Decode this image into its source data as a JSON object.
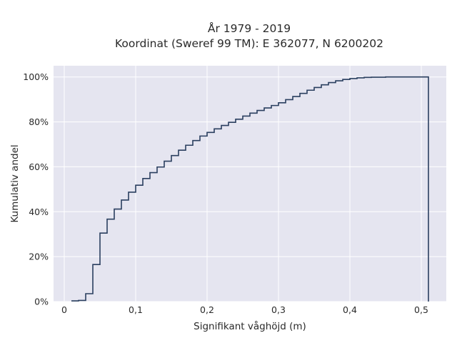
{
  "chart_data": {
    "type": "line",
    "step": true,
    "title_lines": [
      "År 1979 - 2019",
      "Koordinat (Sweref 99 TM): E 362077, N 6200202"
    ],
    "xlabel": "Signifikant våghöjd (m)",
    "ylabel": "Kumulativ andel",
    "xlim": [
      -0.015,
      0.535
    ],
    "ylim": [
      0,
      1.05
    ],
    "x_ticks": [
      0,
      0.1,
      0.2,
      0.3,
      0.4,
      0.5
    ],
    "x_tick_labels": [
      "0",
      "0,1",
      "0,2",
      "0,3",
      "0,4",
      "0,5"
    ],
    "y_ticks": [
      0,
      0.2,
      0.4,
      0.6,
      0.8,
      1.0
    ],
    "y_tick_labels": [
      "0%",
      "20%",
      "40%",
      "60%",
      "80%",
      "100%"
    ],
    "grid": true,
    "x": [
      0.01,
      0.02,
      0.03,
      0.04,
      0.05,
      0.06,
      0.07,
      0.08,
      0.09,
      0.1,
      0.11,
      0.12,
      0.13,
      0.14,
      0.15,
      0.16,
      0.17,
      0.18,
      0.19,
      0.2,
      0.21,
      0.22,
      0.23,
      0.24,
      0.25,
      0.26,
      0.27,
      0.28,
      0.29,
      0.3,
      0.31,
      0.32,
      0.33,
      0.34,
      0.35,
      0.36,
      0.37,
      0.38,
      0.39,
      0.4,
      0.41,
      0.42,
      0.43,
      0.44,
      0.45,
      0.46,
      0.47,
      0.48,
      0.49,
      0.5,
      0.51
    ],
    "y": [
      0.003,
      0.005,
      0.035,
      0.165,
      0.305,
      0.367,
      0.412,
      0.452,
      0.487,
      0.518,
      0.548,
      0.574,
      0.599,
      0.625,
      0.65,
      0.674,
      0.696,
      0.717,
      0.737,
      0.753,
      0.769,
      0.784,
      0.798,
      0.812,
      0.826,
      0.839,
      0.851,
      0.862,
      0.873,
      0.885,
      0.899,
      0.913,
      0.927,
      0.941,
      0.953,
      0.965,
      0.975,
      0.983,
      0.989,
      0.993,
      0.996,
      0.998,
      0.999,
      0.999,
      1.0,
      1.0,
      1.0,
      1.0,
      1.0,
      1.0,
      0.0
    ]
  },
  "colors": {
    "line": "#2a3f5f",
    "plot_bg": "#e5e5f0",
    "grid": "#ffffff"
  }
}
